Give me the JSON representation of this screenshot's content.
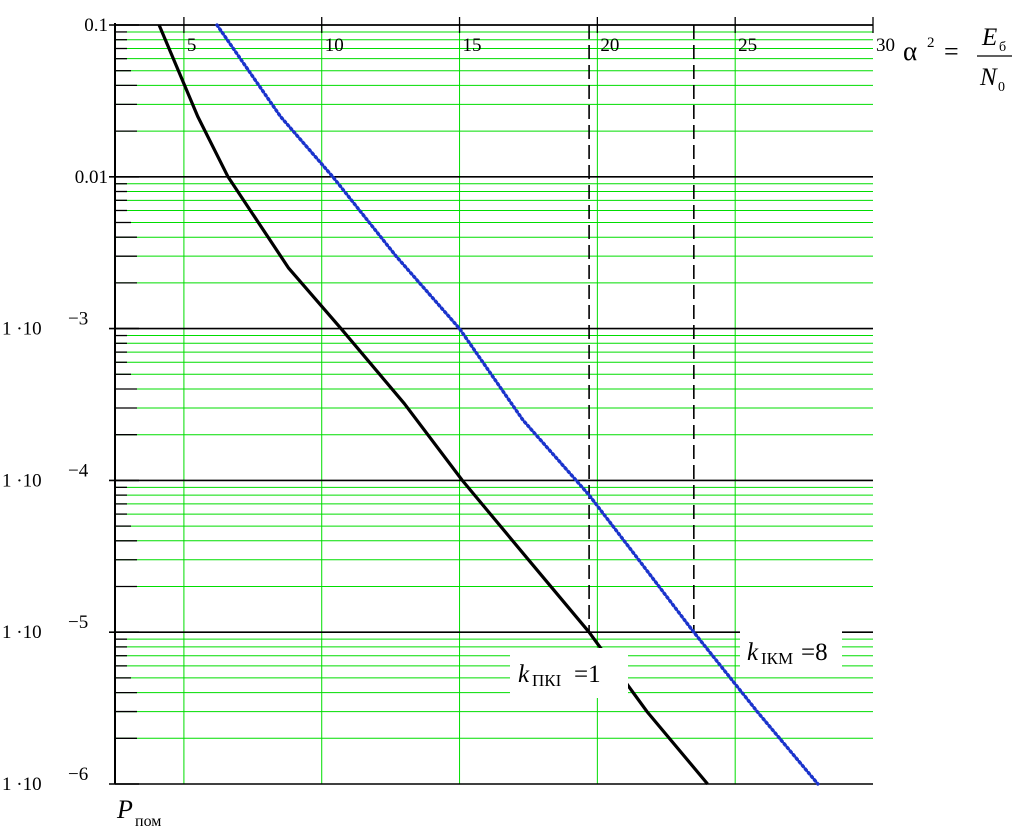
{
  "chart_data": {
    "type": "line",
    "title": "",
    "xlabel": "α² = E_б / N₀",
    "ylabel": "P_пом",
    "x_axis_position": "top",
    "y_scale": "log",
    "xlim": [
      2.5,
      30
    ],
    "ylim": [
      1e-06,
      0.1
    ],
    "x_ticks": [
      5,
      10,
      15,
      20,
      25,
      30
    ],
    "y_ticks": [
      {
        "value": 0.1,
        "label": "0.1"
      },
      {
        "value": 0.01,
        "label": "0.01"
      },
      {
        "value": 0.001,
        "mant": "1 ·10",
        "exp": "−3"
      },
      {
        "value": 0.0001,
        "mant": "1 ·10",
        "exp": "−4"
      },
      {
        "value": 1e-05,
        "mant": "1 ·10",
        "exp": "−5"
      },
      {
        "value": 1e-06,
        "mant": "1 ·10",
        "exp": "−6"
      }
    ],
    "grid": true,
    "series": [
      {
        "name": "k_ПКI=1",
        "style": "solid",
        "color": "#000000",
        "x": [
          4.1,
          5.5,
          6.6,
          8.8,
          10.7,
          13.0,
          15.1,
          17.5,
          19.7,
          21.8,
          24.0
        ],
        "y": [
          0.1,
          0.025,
          0.01,
          0.0025,
          0.001,
          0.00032,
          0.0001,
          3e-05,
          1e-05,
          3e-06,
          1e-06
        ]
      },
      {
        "name": "k_ІКМ=8",
        "style": "dotted",
        "color": "#1a33cc",
        "x": [
          6.2,
          8.5,
          10.4,
          12.7,
          15.0,
          17.3,
          19.7,
          21.5,
          23.5,
          25.8,
          28.0
        ],
        "y": [
          0.1,
          0.025,
          0.01,
          0.003,
          0.001,
          0.00025,
          8e-05,
          3e-05,
          1e-05,
          3e-06,
          1e-06
        ]
      }
    ],
    "reference_lines": [
      {
        "x": 19.7,
        "y_from": 1e-05,
        "y_to": 0.1,
        "style": "dashed"
      },
      {
        "x": 23.5,
        "y_from": 1e-05,
        "y_to": 0.1,
        "style": "dashed"
      }
    ],
    "annotations": {
      "series1_label": {
        "base": "k",
        "sub": "ПКI",
        "rest": "=1"
      },
      "series2_label": {
        "base": "k",
        "sub": "ІКМ",
        "rest": "=8"
      },
      "x_axis_label": {
        "lhs": "α",
        "pow": "2",
        "eq": "=",
        "num": "E",
        "num_sub": "б",
        "den": "N",
        "den_sub": "0"
      },
      "y_axis_label": {
        "base": "P",
        "sub": "пом"
      }
    },
    "colors": {
      "major_grid": "#000000",
      "minor_grid": "#00dd00",
      "series1": "#000000",
      "series2": "#1a33cc"
    }
  }
}
